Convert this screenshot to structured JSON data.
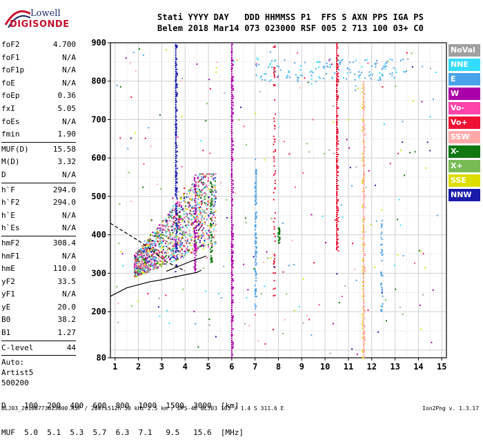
{
  "logo": {
    "line1": "Lowell",
    "line2": "DIGISONDE"
  },
  "header": {
    "line1": "Stati YYYY DAY   DDD HHMMSS P1  FFS S AXN PPS IGA PS",
    "line2": "Belem 2018 Mar14 073 023000 RSF 005 2 713 100 03+ C0"
  },
  "params_groups": [
    [
      {
        "name": "foF2",
        "value": "4.700"
      },
      {
        "name": "foF1",
        "value": "N/A"
      },
      {
        "name": "foF1p",
        "value": "N/A"
      },
      {
        "name": "foE",
        "value": "N/A"
      },
      {
        "name": "foEp",
        "value": "0.36"
      },
      {
        "name": "fxI",
        "value": "5.05"
      },
      {
        "name": "foEs",
        "value": "N/A"
      },
      {
        "name": "fmin",
        "value": "1.90"
      }
    ],
    [
      {
        "name": "MUF(D)",
        "value": "15.58"
      },
      {
        "name": "M(D)",
        "value": "3.32"
      },
      {
        "name": "D",
        "value": "N/A"
      }
    ],
    [
      {
        "name": "h`F",
        "value": "294.0"
      },
      {
        "name": "h`F2",
        "value": "294.0"
      },
      {
        "name": "h`E",
        "value": "N/A"
      },
      {
        "name": "h`Es",
        "value": "N/A"
      }
    ],
    [
      {
        "name": "hmF2",
        "value": "308.4"
      },
      {
        "name": "hmF1",
        "value": "N/A"
      },
      {
        "name": "hmE",
        "value": "110.0"
      },
      {
        "name": "yF2",
        "value": "33.5"
      },
      {
        "name": "yF1",
        "value": "N/A"
      },
      {
        "name": "yE",
        "value": "20.0"
      },
      {
        "name": "B0",
        "value": "38.2"
      },
      {
        "name": "B1",
        "value": "1.27"
      }
    ],
    [
      {
        "name": "C-level",
        "value": "44"
      }
    ]
  ],
  "auto": {
    "line1": "Auto:",
    "line2": "Artist5",
    "line3": "500200"
  },
  "legend": [
    {
      "label": "NoVal",
      "color": "#a0a0a0"
    },
    {
      "label": "NNE",
      "color": "#33ddff"
    },
    {
      "label": "E",
      "color": "#4aa3e8"
    },
    {
      "label": "W",
      "color": "#aa00aa"
    },
    {
      "label": "Vo-",
      "color": "#ff44aa"
    },
    {
      "label": "Vo+",
      "color": "#ee1133"
    },
    {
      "label": "SSW",
      "color": "#ffaaaa"
    },
    {
      "label": "X-",
      "color": "#117711"
    },
    {
      "label": "X+",
      "color": "#77bb55"
    },
    {
      "label": "SSE",
      "color": "#dddd00"
    },
    {
      "label": "NNW",
      "color": "#1a1aaa"
    }
  ],
  "chart_data": {
    "type": "scatter",
    "xlim": [
      0.8,
      15.2
    ],
    "ylim": [
      80,
      900
    ],
    "x_ticks": [
      1,
      2,
      3,
      4,
      5,
      6,
      7,
      8,
      9,
      10,
      11,
      12,
      13,
      14,
      15
    ],
    "y_ticks": [
      80,
      200,
      300,
      400,
      500,
      600,
      700,
      800,
      900
    ],
    "vertical_lines": [
      {
        "x": 6.0,
        "ymin": 80,
        "ymax": 900,
        "color": "#aa00aa"
      },
      {
        "x": 10.5,
        "ymin": 360,
        "ymax": 900,
        "color": "#ee1133"
      },
      {
        "x": 11.65,
        "ymin": 80,
        "ymax": 800,
        "color": "#ffaaaa"
      },
      {
        "x": 7.05,
        "ymin": 490,
        "ymax": 570,
        "color": "#4aa3e8"
      },
      {
        "x": 3.6,
        "ymin": 500,
        "ymax": 900,
        "color": "#1a1aaa"
      }
    ],
    "traces": [
      {
        "name": "solid",
        "style": "solid",
        "points": [
          [
            0.8,
            240
          ],
          [
            1.5,
            262
          ],
          [
            2.0,
            270
          ],
          [
            2.5,
            278
          ],
          [
            3.0,
            283
          ],
          [
            3.5,
            290
          ],
          [
            4.0,
            296
          ],
          [
            4.5,
            302
          ],
          [
            4.7,
            308
          ]
        ]
      },
      {
        "name": "solid-upper",
        "style": "solid",
        "points": [
          [
            3.2,
            305
          ],
          [
            3.6,
            315
          ],
          [
            4.0,
            325
          ],
          [
            4.4,
            335
          ],
          [
            4.7,
            340
          ],
          [
            4.9,
            345
          ]
        ]
      },
      {
        "name": "dashed",
        "style": "dashed",
        "points": [
          [
            0.8,
            430
          ],
          [
            1.2,
            415
          ],
          [
            1.6,
            400
          ],
          [
            2.0,
            385
          ],
          [
            2.4,
            368
          ],
          [
            2.8,
            348
          ],
          [
            3.2,
            330
          ],
          [
            3.6,
            318
          ],
          [
            4.0,
            306
          ]
        ]
      }
    ]
  },
  "d_table": {
    "line1": "D    100  200  400  600  800  1000  1500  3000  [km]",
    "line2": "MUF  5.0  5.1  5.3  5.7  6.3  7.1   9.5   15.6  [MHz]"
  },
  "footer": {
    "left": "BLJ03_20180773023000.RSF / 284fx512h 50 kHz 2.5 km / DPS-4D BLJ03 103 / 1.4 S 311.6 E",
    "right": "Ion2Png v. 1.3.17"
  }
}
